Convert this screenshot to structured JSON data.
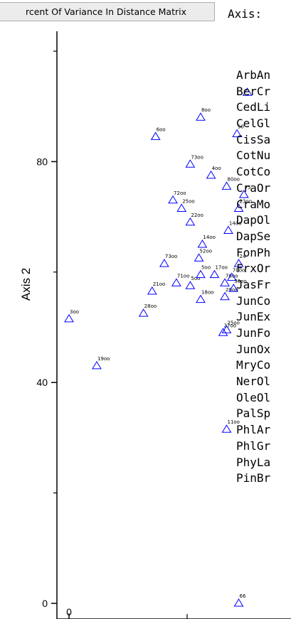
{
  "toolbar": {
    "variance_button": "rcent Of Variance In Distance Matrix"
  },
  "axis_panel": {
    "title": "Axis:"
  },
  "species": [
    "ArbAn",
    "BerCr",
    "CedLi",
    "CelGl",
    "CisSa",
    "CotNu",
    "CotCo",
    "CraOr",
    "CraMo",
    "DapOl",
    "DapSe",
    "FonPh",
    "FrxOr",
    "JasFr",
    "JunCo",
    "JunEx",
    "JunFo",
    "JunOx",
    "MryCo",
    "NerOl",
    "OleOl",
    "PalSp",
    "PhlAr",
    "PhlGr",
    "PhyLa",
    "PinBr"
  ],
  "colors": {
    "marker": "#0000ff",
    "axis": "#000000",
    "background": "#ffffff"
  },
  "chart_data": {
    "type": "scatter",
    "ylabel": "Axis 2",
    "xlabel": "",
    "ylim": [
      0,
      100
    ],
    "xlim": [
      0,
      53
    ],
    "yticks": [
      "0",
      "40",
      "80"
    ],
    "xticks": [
      "0"
    ],
    "marker": "open-triangle",
    "points": [
      {
        "label": "3oo",
        "x": 0.0,
        "y": 51.5
      },
      {
        "label": "19oo",
        "x": 8.0,
        "y": 43.0
      },
      {
        "label": "28oo",
        "x": 21.5,
        "y": 52.5
      },
      {
        "label": "21oo",
        "x": 24.0,
        "y": 56.5
      },
      {
        "label": "6oo",
        "x": 25.0,
        "y": 84.5
      },
      {
        "label": "73oo",
        "x": 27.5,
        "y": 61.5
      },
      {
        "label": "72oo",
        "x": 30.0,
        "y": 73.0
      },
      {
        "label": "71oo",
        "x": 31.0,
        "y": 58.0
      },
      {
        "label": "25oo",
        "x": 32.5,
        "y": 71.5
      },
      {
        "label": "73oo",
        "x": 35.0,
        "y": 79.5
      },
      {
        "label": "22oo",
        "x": 35.0,
        "y": 69.0
      },
      {
        "label": "5oo",
        "x": 35.0,
        "y": 57.5
      },
      {
        "label": "8oo",
        "x": 38.0,
        "y": 88.0
      },
      {
        "label": "52oo",
        "x": 37.5,
        "y": 62.5
      },
      {
        "label": "5oo",
        "x": 38.0,
        "y": 59.5
      },
      {
        "label": "18oo",
        "x": 38.0,
        "y": 55.0
      },
      {
        "label": "14oo",
        "x": 38.5,
        "y": 65.0
      },
      {
        "label": "4oo",
        "x": 41.0,
        "y": 77.5
      },
      {
        "label": "17oo",
        "x": 42.0,
        "y": 59.5
      },
      {
        "label": "80oo",
        "x": 45.5,
        "y": 75.5
      },
      {
        "label": "14oo",
        "x": 46.0,
        "y": 67.5
      },
      {
        "label": "76oo",
        "x": 45.0,
        "y": 58.0
      },
      {
        "label": "29oo",
        "x": 45.0,
        "y": 55.5
      },
      {
        "label": "27oo",
        "x": 44.5,
        "y": 49.0
      },
      {
        "label": "25oo",
        "x": 45.5,
        "y": 49.5
      },
      {
        "label": "70oo",
        "x": 47.0,
        "y": 59.0
      },
      {
        "label": "30oo",
        "x": 47.5,
        "y": 57.0
      },
      {
        "label": "11oo",
        "x": 45.5,
        "y": 31.5
      },
      {
        "label": "50",
        "x": 48.5,
        "y": 85.0
      },
      {
        "label": "23oo",
        "x": 49.0,
        "y": 71.5
      },
      {
        "label": "24",
        "x": 49.0,
        "y": 61.5
      },
      {
        "label": "75",
        "x": 50.5,
        "y": 74.0
      },
      {
        "label": "66",
        "x": 49.0,
        "y": 0.0
      },
      {
        "label": "",
        "x": 51.5,
        "y": 92.5
      }
    ]
  }
}
